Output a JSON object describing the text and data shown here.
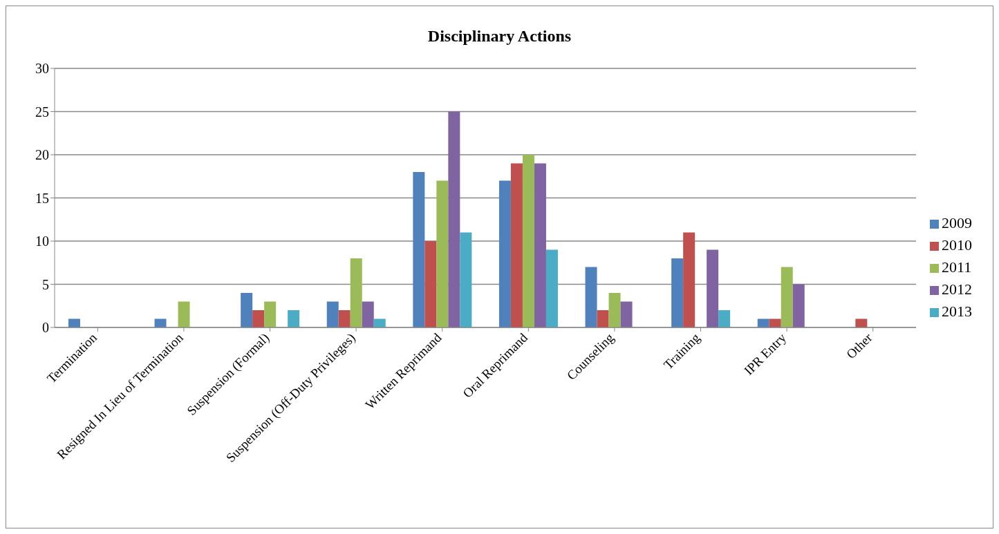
{
  "chart_data": {
    "type": "bar",
    "title": "Disciplinary Actions",
    "categories": [
      "Termination",
      "Resigned In Lieu of Termination",
      "Suspension (Formal)",
      "Suspension (Off-Duty Privileges)",
      "Written Reprimand",
      "Oral Reprimand",
      "Counseling",
      "Training",
      "IPR Entry",
      "Other"
    ],
    "series": [
      {
        "name": "2009",
        "color": "#4f81bd",
        "values": [
          1,
          1,
          4,
          3,
          18,
          17,
          7,
          8,
          1,
          0
        ]
      },
      {
        "name": "2010",
        "color": "#c0504d",
        "values": [
          0,
          0,
          2,
          2,
          10,
          19,
          2,
          11,
          1,
          1
        ]
      },
      {
        "name": "2011",
        "color": "#9bbb59",
        "values": [
          0,
          3,
          3,
          8,
          17,
          20,
          4,
          0,
          7,
          0
        ]
      },
      {
        "name": "2012",
        "color": "#8064a2",
        "values": [
          0,
          0,
          0,
          3,
          25,
          19,
          3,
          9,
          5,
          0
        ]
      },
      {
        "name": "2013",
        "color": "#4bacc6",
        "values": [
          0,
          0,
          2,
          1,
          11,
          9,
          0,
          2,
          0,
          0
        ]
      }
    ],
    "ylim": [
      0,
      30
    ],
    "yticks": [
      0,
      5,
      10,
      15,
      20,
      25,
      30
    ],
    "grid": "y",
    "legend": "right"
  }
}
